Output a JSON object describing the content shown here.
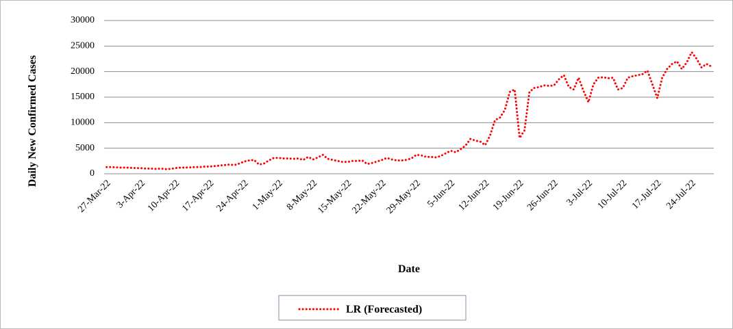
{
  "chart_data": {
    "type": "line",
    "x_label": "Date",
    "y_label": "Daily New Confirmed Cases",
    "categories": [
      "27-Mar-22",
      null,
      null,
      null,
      null,
      null,
      null,
      "3-Apr-22",
      null,
      null,
      null,
      null,
      null,
      null,
      "10-Apr-22",
      null,
      null,
      null,
      null,
      null,
      null,
      "17-Apr-22",
      null,
      null,
      null,
      null,
      null,
      null,
      "24-Apr-22",
      null,
      null,
      null,
      null,
      null,
      null,
      "1-May-22",
      null,
      null,
      null,
      null,
      null,
      null,
      "8-May-22",
      null,
      null,
      null,
      null,
      null,
      null,
      "15-May-22",
      null,
      null,
      null,
      null,
      null,
      null,
      "22-May-22",
      null,
      null,
      null,
      null,
      null,
      null,
      "29-May-22",
      null,
      null,
      null,
      null,
      null,
      null,
      "5-Jun-22",
      null,
      null,
      null,
      null,
      null,
      null,
      "12-Jun-22",
      null,
      null,
      null,
      null,
      null,
      null,
      "19-Jun-22",
      null,
      null,
      null,
      null,
      null,
      null,
      "26-Jun-22",
      null,
      null,
      null,
      null,
      null,
      null,
      "3-Jul-22",
      null,
      null,
      null,
      null,
      null,
      null,
      "10-Jul-22",
      null,
      null,
      null,
      null,
      null,
      null,
      "17-Jul-22",
      null,
      null,
      null,
      null,
      null,
      null,
      "24-Jul-22",
      null,
      null,
      null,
      null
    ],
    "series": [
      {
        "name": "LR (Forecasted)",
        "color": "#ff0000",
        "values": [
          1300,
          1300,
          1250,
          1200,
          1200,
          1150,
          1100,
          1100,
          1000,
          1000,
          950,
          1000,
          900,
          950,
          1100,
          1200,
          1200,
          1250,
          1300,
          1300,
          1400,
          1400,
          1500,
          1600,
          1700,
          1800,
          1700,
          2000,
          2400,
          2600,
          2700,
          1800,
          2000,
          2600,
          3100,
          3100,
          3000,
          3000,
          2900,
          3000,
          2700,
          3300,
          2800,
          3200,
          3700,
          2900,
          2700,
          2500,
          2300,
          2300,
          2500,
          2500,
          2600,
          1900,
          2100,
          2400,
          2700,
          3100,
          2800,
          2600,
          2600,
          2700,
          3000,
          3700,
          3600,
          3300,
          3300,
          3200,
          3500,
          4000,
          4500,
          4200,
          4800,
          5500,
          6800,
          6500,
          6300,
          5600,
          7500,
          10500,
          11000,
          12500,
          16000,
          16500,
          7000,
          8500,
          16000,
          16800,
          17000,
          17300,
          17200,
          17300,
          18500,
          19300,
          17000,
          16500,
          18800,
          16200,
          14000,
          17500,
          18800,
          18900,
          18700,
          18800,
          16500,
          16800,
          18800,
          19100,
          19300,
          19500,
          20200,
          17500,
          14800,
          18800,
          20500,
          21500,
          22000,
          20500,
          21800,
          23800,
          22500,
          20800,
          21500,
          21000
        ]
      }
    ],
    "ylim": [
      0,
      30000
    ],
    "yticks": [
      0,
      5000,
      10000,
      15000,
      20000,
      25000,
      30000
    ],
    "grid": true,
    "legend": "bottom"
  }
}
